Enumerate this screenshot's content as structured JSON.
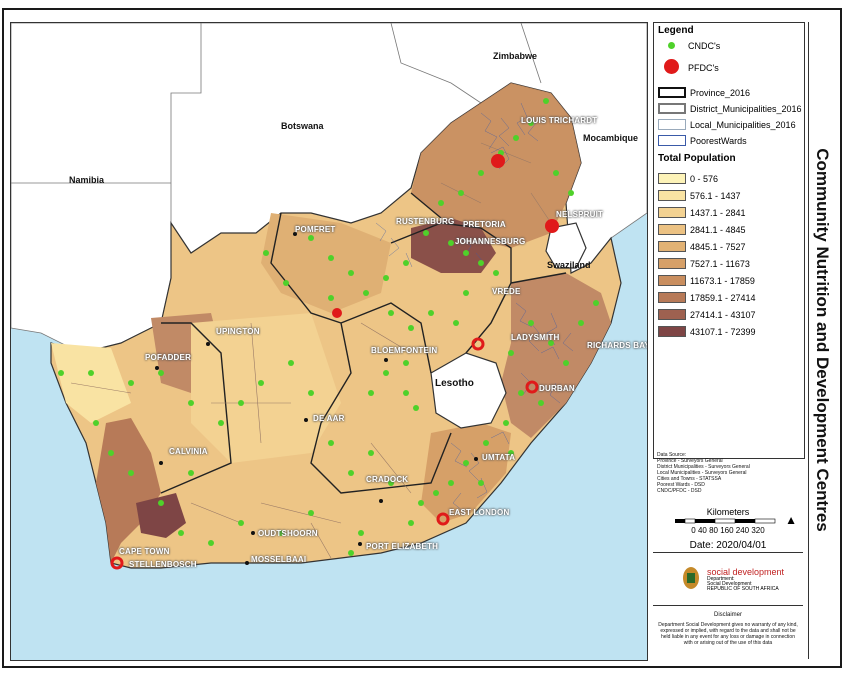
{
  "title": "Community Nutrition and Development Centres",
  "countries": {
    "zimbabwe": "Zimbabwe",
    "botswana": "Botswana",
    "namibia": "Namibia",
    "mozambique": "Mocambique",
    "swaziland": "Swaziland",
    "lesotho": "Lesotho"
  },
  "towns": [
    "LOUIS TRICHARDT",
    "NELSPRUIT",
    "RUSTENBURG",
    "PRETORIA",
    "JOHANNESBURG",
    "POMFRET",
    "VREDE",
    "UPINGTON",
    "POFADDER",
    "LADYSMITH",
    "RICHARDS BAY",
    "BLOEMFONTEIN",
    "DURBAN",
    "DE AAR",
    "CALVINIA",
    "UMTATA",
    "CRADOCK",
    "EAST LONDON",
    "OUDTSHOORN",
    "MOSSELBAAI",
    "PORT ELIZABETH",
    "CAPE TOWN",
    "STELLENBOSCH"
  ],
  "legend": {
    "title": "Legend",
    "cndc": "CNDC's",
    "pfdc": "PFDC's",
    "province": "Province_2016",
    "district": "District_Municipalities_2016",
    "local": "Local_Municipalities_2016",
    "wards": "PoorestWards",
    "pop_title": "Total Population",
    "classes": [
      {
        "label": "0 - 576",
        "color": "#fdf3b8"
      },
      {
        "label": "576.1 - 1437",
        "color": "#f9e3a3"
      },
      {
        "label": "1437.1 - 2841",
        "color": "#f3d292"
      },
      {
        "label": "2841.1 - 4845",
        "color": "#ecc283"
      },
      {
        "label": "4845.1 - 7527",
        "color": "#e2b274"
      },
      {
        "label": "7527.1 - 11673",
        "color": "#d6a068"
      },
      {
        "label": "11673.1 - 17859",
        "color": "#c98e5f"
      },
      {
        "label": "17859.1 - 27414",
        "color": "#b77a58"
      },
      {
        "label": "27414.1 - 43107",
        "color": "#9e6150"
      },
      {
        "label": "43107.1 - 72399",
        "color": "#7e4545"
      }
    ],
    "cndc_color": "#4fd12a",
    "pfdc_color": "#e01a1a"
  },
  "info": {
    "source_lines": [
      "Data Source:",
      "Province - Surveyors General",
      "District Municipalities - Surveyors General",
      "Local Municipalities - Surveyors General",
      "Cities and Towns - STATSSA",
      "Poorest Wards - DSD",
      "CNDC/PFDC - DSD"
    ],
    "km_label": "Kilometers",
    "scale_ticks": [
      "0",
      "40",
      "80",
      "160",
      "240",
      "320"
    ],
    "north": "N",
    "date": "Date: 2020/04/01",
    "logo_text": "social development",
    "logo_sub1": "Department:",
    "logo_sub2": "Social Development",
    "logo_sub3": "REPUBLIC OF SOUTH AFRICA",
    "disclaimer_title": "Disclaimer",
    "disclaimer": "Department Social Development gives no warranty of any kind, expressed or implied, with regard to the data and shall not be held liable in any event for any loss or damage in connection with or arising out of the use of this data"
  }
}
